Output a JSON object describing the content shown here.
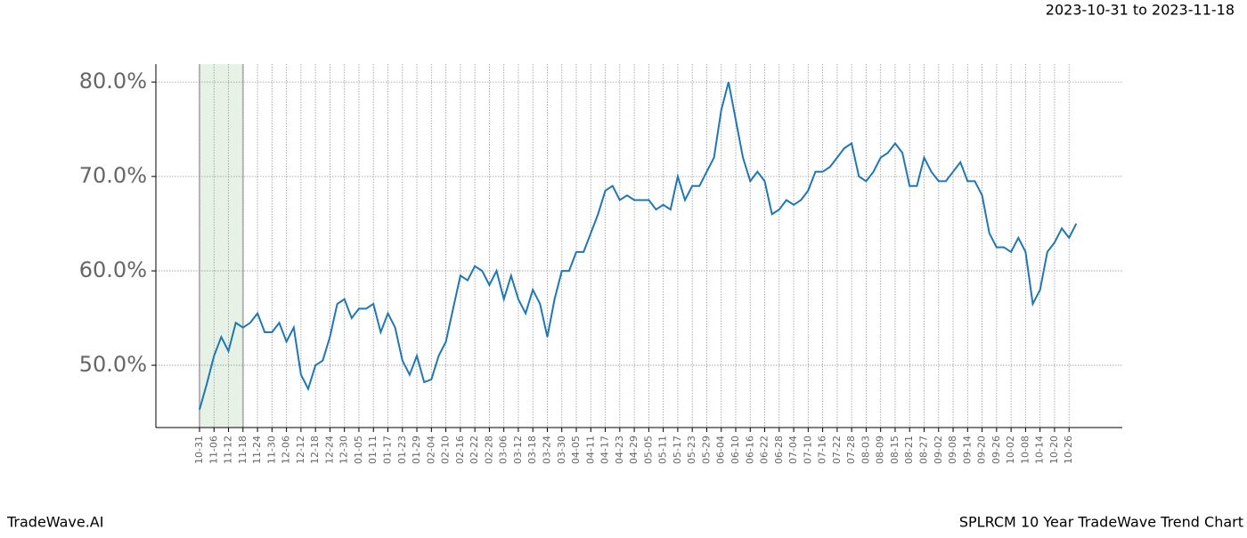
{
  "chart_data": {
    "type": "line",
    "title": "SPLRCM 10 Year TradeWave Trend Chart",
    "subtitle": "2023-10-31 to 2023-11-18",
    "brand": "TradeWave.AI",
    "highlight": [
      "10-31",
      "11-18"
    ],
    "highlight_color": "#e6f2e6",
    "grid": true,
    "categories": [
      "10-31",
      null,
      "11-06",
      null,
      "11-12",
      null,
      "11-18",
      null,
      "11-24",
      null,
      "11-30",
      null,
      "12-06",
      null,
      "12-12",
      null,
      "12-18",
      null,
      "12-24",
      null,
      "12-30",
      null,
      "01-05",
      null,
      "01-11",
      null,
      "01-17",
      null,
      "01-23",
      null,
      "01-29",
      null,
      "02-04",
      null,
      "02-10",
      null,
      "02-16",
      null,
      "02-22",
      null,
      "02-28",
      null,
      "03-06",
      null,
      "03-12",
      null,
      "03-18",
      null,
      "03-24",
      null,
      "03-30",
      null,
      "04-05",
      null,
      "04-11",
      null,
      "04-17",
      null,
      "04-23",
      null,
      "04-29",
      null,
      "05-05",
      null,
      "05-11",
      null,
      "05-17",
      null,
      "05-23",
      null,
      "05-29",
      null,
      "06-04",
      null,
      "06-10",
      null,
      "06-16",
      null,
      "06-22",
      null,
      "06-28",
      null,
      "07-04",
      null,
      "07-10",
      null,
      "07-16",
      null,
      "07-22",
      null,
      "07-28",
      null,
      "08-03",
      null,
      "08-09",
      null,
      "08-15",
      null,
      "08-21",
      null,
      "08-27",
      null,
      "09-02",
      null,
      "09-08",
      null,
      "09-14",
      null,
      "09-20",
      null,
      "09-26",
      null,
      "10-02",
      null,
      "10-08",
      null,
      "10-14",
      null,
      "10-20",
      null,
      "10-26",
      null
    ],
    "series": [
      {
        "name": "SPLRCM",
        "color": "#1f77b4",
        "values": [
          45.3,
          48,
          51,
          53,
          51.5,
          54.5,
          54,
          54.5,
          55.5,
          53.5,
          53.5,
          54.5,
          52.5,
          54,
          49,
          47.5,
          50,
          50.5,
          53,
          56.5,
          57,
          55,
          56,
          56,
          56.5,
          53.5,
          55.5,
          54,
          50.5,
          49,
          51,
          48.2,
          48.5,
          51,
          52.5,
          56,
          59.5,
          59,
          60.5,
          60,
          58.5,
          60,
          57,
          59.5,
          57,
          55.5,
          58,
          56.5,
          53,
          57,
          60,
          60,
          62,
          62,
          64,
          66,
          68.5,
          69,
          67.5,
          68,
          67.5,
          67.5,
          67.5,
          66.5,
          67,
          66.5,
          70,
          67.5,
          69,
          69,
          70.5,
          72,
          77,
          80,
          76,
          72,
          69.5,
          70.5,
          69.5,
          66,
          66.5,
          67.5,
          67,
          67.5,
          68.5,
          70.5,
          70.5,
          71,
          72,
          73,
          73.5,
          70,
          69.5,
          70.5,
          72,
          72.5,
          73.5,
          72.5,
          69,
          69,
          72,
          70.5,
          69.5,
          69.5,
          70.5,
          71.5,
          69.5,
          69.5,
          68,
          64,
          62.5,
          62.5,
          62,
          63.5,
          62,
          56.5,
          58,
          62,
          63,
          64.5,
          63.5,
          65
        ]
      }
    ],
    "ylim": [
      43.4,
      81.9
    ],
    "yticks": [
      {
        "value": 50,
        "label": "50.0%"
      },
      {
        "value": 60,
        "label": "60.0%"
      },
      {
        "value": 70,
        "label": "70.0%"
      },
      {
        "value": 80,
        "label": "80.0%"
      }
    ]
  }
}
